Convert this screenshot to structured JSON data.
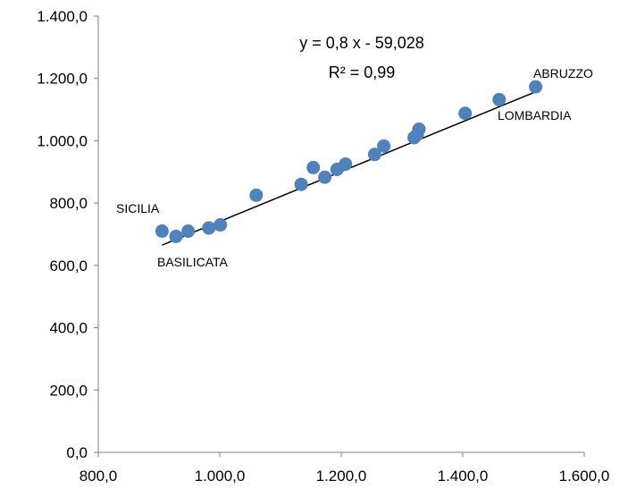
{
  "chart_data": {
    "type": "scatter",
    "title": "",
    "xlabel": "",
    "ylabel": "",
    "xlim": [
      800,
      1600
    ],
    "ylim": [
      0,
      1400
    ],
    "x_ticks": [
      "800,0",
      "1.000,0",
      "1.200,0",
      "1.400,0",
      "1.600,0"
    ],
    "y_ticks": [
      "0,0",
      "200,0",
      "400,0",
      "600,0",
      "800,0",
      "1.000,0",
      "1.200,0",
      "1.400,0"
    ],
    "x_tick_values": [
      800,
      1000,
      1200,
      1400,
      1600
    ],
    "y_tick_values": [
      0,
      200,
      400,
      600,
      800,
      1000,
      1200,
      1400
    ],
    "grid": false,
    "marker_color": "#4F81BD",
    "trendline_color": "#000000",
    "points": [
      {
        "x": 905,
        "y": 710
      },
      {
        "x": 928,
        "y": 693
      },
      {
        "x": 948,
        "y": 710
      },
      {
        "x": 982,
        "y": 720
      },
      {
        "x": 1001,
        "y": 730
      },
      {
        "x": 1060,
        "y": 825
      },
      {
        "x": 1134,
        "y": 860
      },
      {
        "x": 1154,
        "y": 914
      },
      {
        "x": 1173,
        "y": 883
      },
      {
        "x": 1193,
        "y": 908
      },
      {
        "x": 1207,
        "y": 925
      },
      {
        "x": 1255,
        "y": 956
      },
      {
        "x": 1270,
        "y": 983
      },
      {
        "x": 1320,
        "y": 1010
      },
      {
        "x": 1325,
        "y": 1020
      },
      {
        "x": 1328,
        "y": 1037
      },
      {
        "x": 1404,
        "y": 1088
      },
      {
        "x": 1460,
        "y": 1132
      },
      {
        "x": 1520,
        "y": 1173
      }
    ],
    "trendline": {
      "slope": 0.8,
      "intercept": -59.028,
      "x_range": [
        905,
        1520
      ],
      "equation": "y = 0,8 x - 59,028",
      "r_squared": "R² = 0,99"
    },
    "annotations": [
      {
        "text": "SICILIA"
      },
      {
        "text": "BASILICATA"
      },
      {
        "text": "ABRUZZO"
      },
      {
        "text": "LOMBARDIA"
      }
    ]
  }
}
